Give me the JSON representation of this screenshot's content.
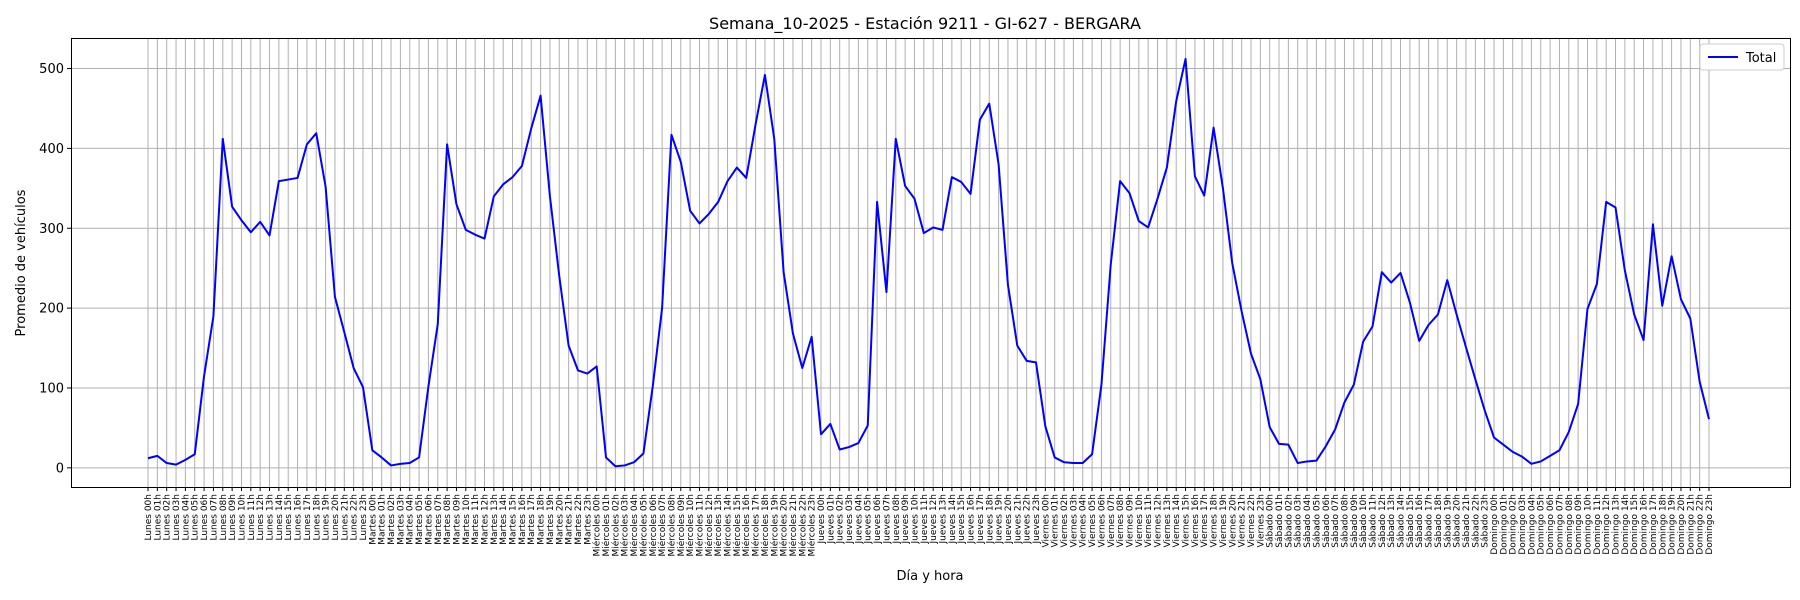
{
  "chart_data": {
    "type": "line",
    "title": "Semana_10-2025 - Estación 9211 - GI-627  - BERGARA",
    "xlabel": "Día y hora",
    "ylabel": "Promedio de vehículos",
    "ylim": [
      -24,
      537
    ],
    "yticks": [
      0,
      100,
      200,
      300,
      400,
      500
    ],
    "grid": true,
    "legend_position": "top-right",
    "days": [
      "Lunes",
      "Martes",
      "Miércoles",
      "Jueves",
      "Viernes",
      "Sábado",
      "Domingo"
    ],
    "hours": [
      "00h",
      "01h",
      "02h",
      "03h",
      "04h",
      "05h",
      "06h",
      "07h",
      "08h",
      "09h",
      "10h",
      "11h",
      "12h",
      "13h",
      "14h",
      "15h",
      "16h",
      "17h",
      "18h",
      "19h",
      "20h",
      "21h",
      "22h",
      "23h"
    ],
    "series": [
      {
        "name": "Total",
        "color": "#0000ff",
        "values": [
          12,
          15,
          6,
          4,
          10,
          17,
          115,
          190,
          412,
          327,
          310,
          295,
          308,
          291,
          359,
          361,
          363,
          405,
          419,
          352,
          214,
          170,
          125,
          101,
          22,
          13,
          3,
          5,
          6,
          13,
          102,
          180,
          405,
          330,
          298,
          292,
          287,
          340,
          355,
          364,
          378,
          425,
          466,
          340,
          240,
          153,
          122,
          118,
          127,
          13,
          2,
          3,
          7,
          18,
          102,
          200,
          417,
          383,
          322,
          306,
          318,
          333,
          359,
          376,
          363,
          430,
          492,
          412,
          245,
          168,
          125,
          164,
          42,
          55,
          23,
          26,
          31,
          53,
          333,
          220,
          412,
          353,
          337,
          294,
          301,
          298,
          364,
          358,
          343,
          436,
          456,
          380,
          229,
          153,
          134,
          132,
          52,
          13,
          7,
          6,
          6,
          17,
          104,
          255,
          359,
          344,
          309,
          301,
          337,
          376,
          459,
          512,
          365,
          341,
          426,
          350,
          256,
          196,
          143,
          111,
          51,
          30,
          29,
          6,
          8,
          9,
          27,
          48,
          82,
          104,
          158,
          177,
          245,
          232,
          244,
          207,
          159,
          179,
          192,
          235,
          192,
          151,
          111,
          72,
          38,
          29,
          20,
          14,
          5,
          8,
          15,
          22,
          45,
          80,
          199,
          230,
          333,
          326,
          247,
          192,
          160,
          305,
          203,
          265,
          211,
          187,
          108,
          61
        ]
      }
    ]
  }
}
